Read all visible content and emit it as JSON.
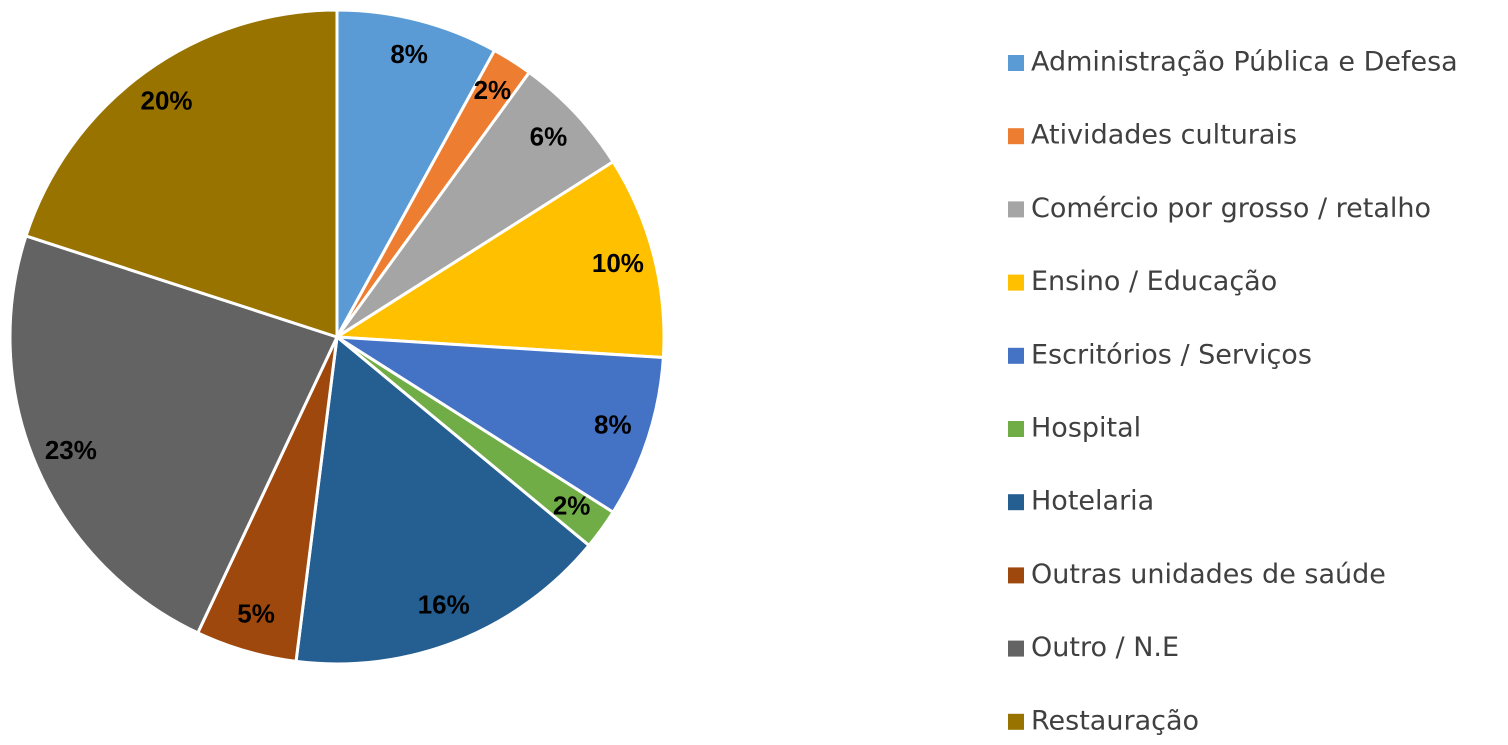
{
  "chart_data": {
    "type": "pie",
    "categories": [
      "Administração Pública e Defesa",
      "Atividades culturais",
      "Comércio por grosso / retalho",
      "Ensino / Educação",
      "Escritórios / Serviços",
      "Hospital",
      "Hotelaria",
      "Outras unidades de saúde",
      "Outro / N.E",
      "Restauração"
    ],
    "values": [
      8,
      2,
      6,
      10,
      8,
      2,
      16,
      5,
      23,
      20
    ],
    "value_labels": [
      "8%",
      "2%",
      "6%",
      "10%",
      "8%",
      "2%",
      "16%",
      "5%",
      "23%",
      "20%"
    ],
    "colors": [
      "#5b9bd5",
      "#ed7d31",
      "#a5a5a5",
      "#ffc000",
      "#4472c4",
      "#70ad47",
      "#255e91",
      "#9e480e",
      "#636363",
      "#997300"
    ],
    "legend": "right"
  }
}
